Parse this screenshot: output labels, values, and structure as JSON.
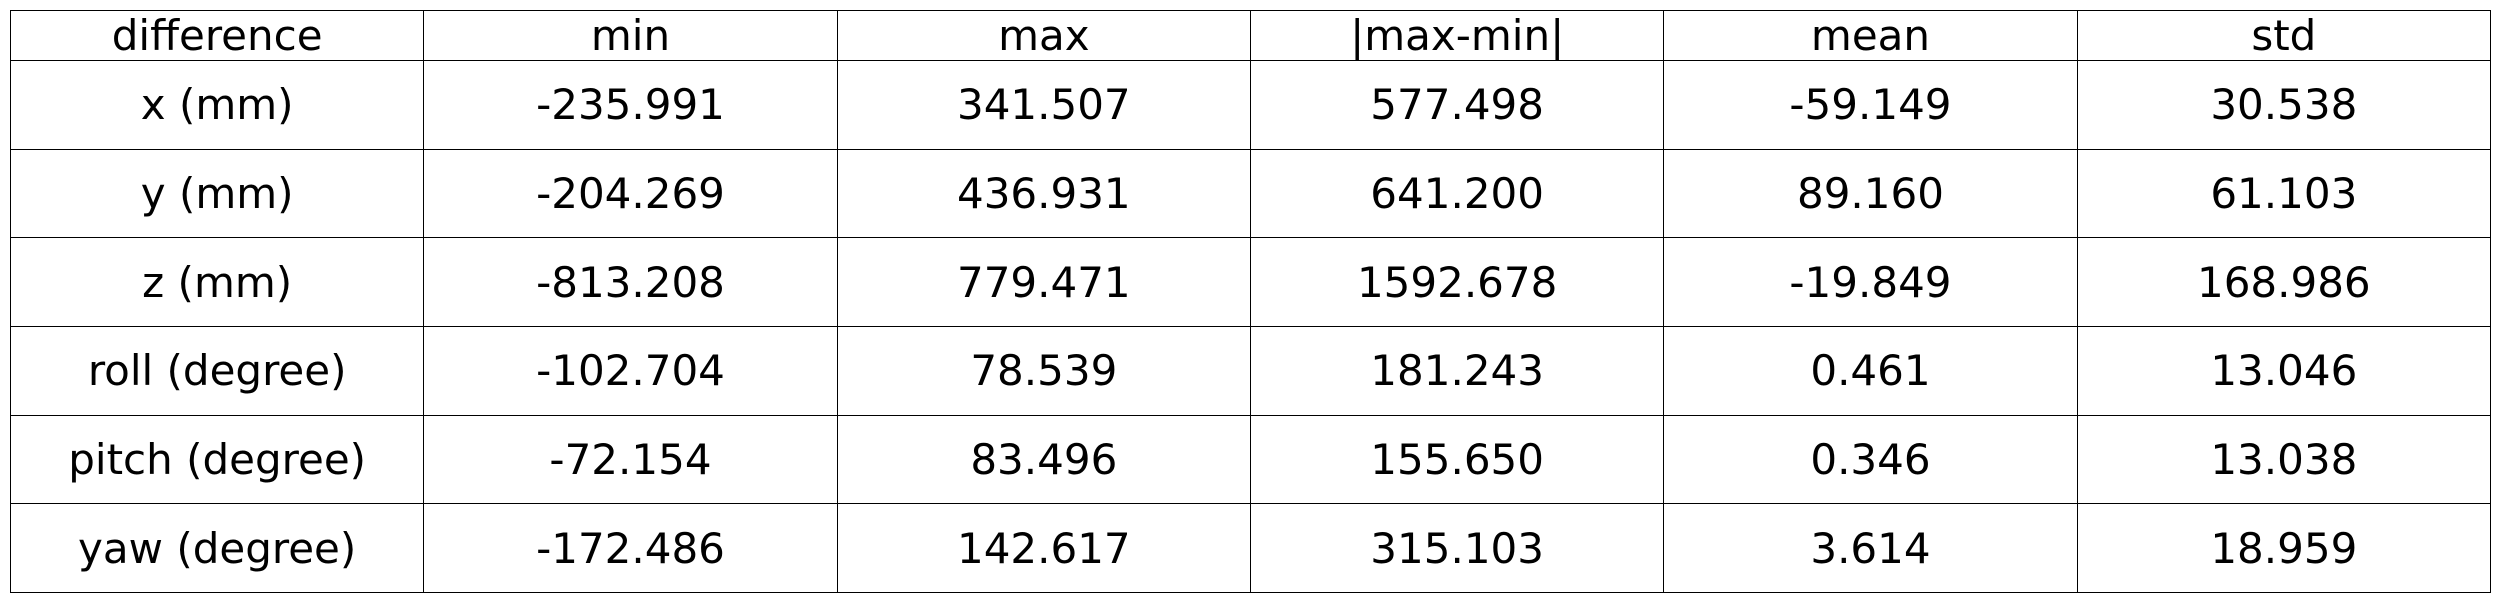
{
  "chart_data": {
    "type": "table",
    "columns": [
      "difference",
      "min",
      "max",
      "|max-min|",
      "mean",
      "std"
    ],
    "rows": [
      [
        "x (mm)",
        "-235.991",
        "341.507",
        "577.498",
        "-59.149",
        "30.538"
      ],
      [
        "y (mm)",
        "-204.269",
        "436.931",
        "641.200",
        "89.160",
        "61.103"
      ],
      [
        "z (mm)",
        "-813.208",
        "779.471",
        "1592.678",
        "-19.849",
        "168.986"
      ],
      [
        "roll (degree)",
        "-102.704",
        "78.539",
        "181.243",
        "0.461",
        "13.046"
      ],
      [
        "pitch (degree)",
        "-72.154",
        "83.496",
        "155.650",
        "0.346",
        "13.038"
      ],
      [
        "yaw (degree)",
        "-172.486",
        "142.617",
        "315.103",
        "3.614",
        "18.959"
      ]
    ]
  }
}
